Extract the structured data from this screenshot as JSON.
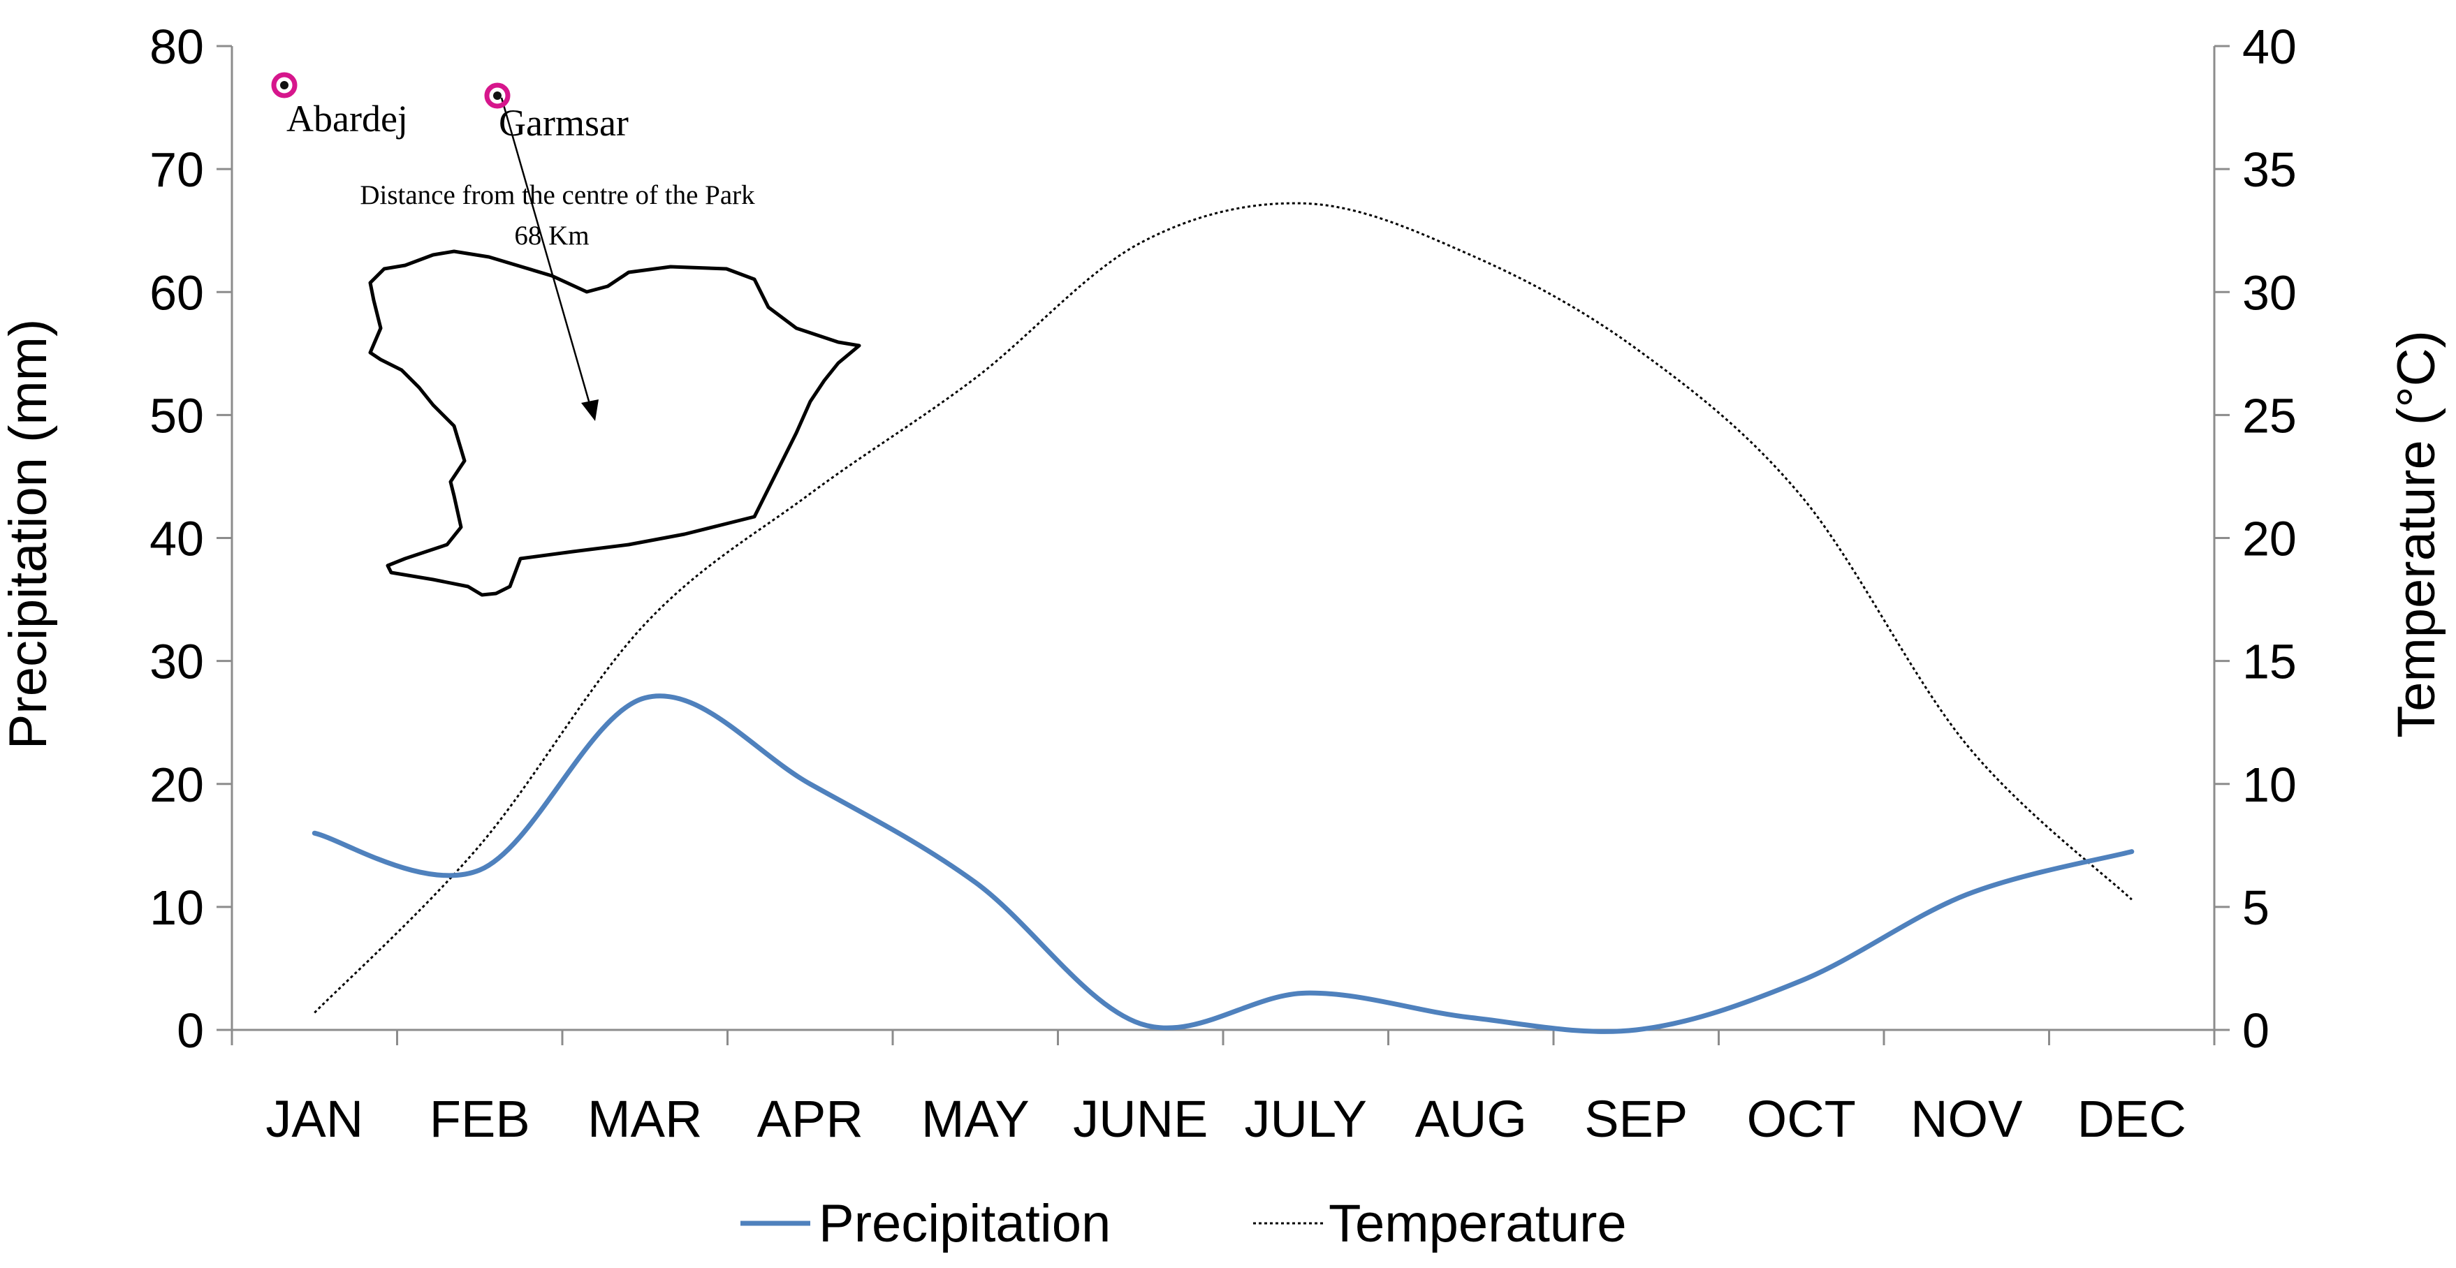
{
  "chart_data": {
    "type": "line",
    "categories": [
      "JAN",
      "FEB",
      "MAR",
      "APR",
      "MAY",
      "JUNE",
      "JULY",
      "AUG",
      "SEP",
      "OCT",
      "NOV",
      "DEC"
    ],
    "series": [
      {
        "name": "Precipitation",
        "axis": "left",
        "color": "#4f81bd",
        "style": "solid",
        "values": [
          16,
          13,
          27,
          20,
          12,
          0.5,
          3,
          1,
          0,
          4,
          11,
          14.5
        ]
      },
      {
        "name": "Temperature",
        "axis": "right",
        "color": "#000000",
        "style": "dotted",
        "values": [
          0.7,
          7.5,
          16.5,
          21.8,
          26.5,
          32,
          33.6,
          31.5,
          27.7,
          21.7,
          11.6,
          5.3
        ]
      }
    ],
    "ylabel_left": "Precipitation (mm)",
    "ylim_left": [
      0,
      80
    ],
    "yticks_left": [
      "0",
      "10",
      "20",
      "30",
      "40",
      "50",
      "60",
      "70",
      "80"
    ],
    "ylabel_right": "Temperature (°C)",
    "ylim_right": [
      0,
      40
    ],
    "yticks_right": [
      "0",
      "5",
      "10",
      "15",
      "20",
      "25",
      "30",
      "35",
      "40"
    ],
    "legend_position": "bottom-center",
    "grid": false,
    "inset_map": {
      "stations": [
        {
          "name": "Abardej",
          "marker_color": "#d6168c"
        },
        {
          "name": "Garmsar",
          "marker_color": "#d6168c"
        }
      ],
      "annotation_line1": "Distance from the centre of the Park",
      "annotation_line2": "68 Km"
    }
  }
}
